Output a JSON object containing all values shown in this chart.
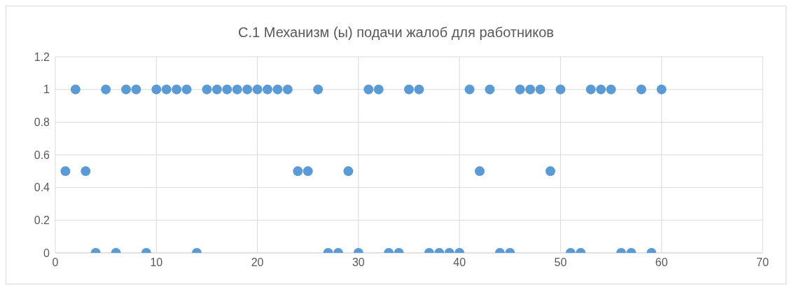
{
  "chart_data": {
    "type": "scatter",
    "title": "С.1 Механизм (ы) подачи жалоб для работников",
    "x": [
      1,
      2,
      3,
      4,
      5,
      6,
      7,
      8,
      9,
      10,
      11,
      12,
      13,
      14,
      15,
      16,
      17,
      18,
      19,
      20,
      21,
      22,
      23,
      24,
      25,
      26,
      27,
      28,
      29,
      30,
      31,
      32,
      33,
      34,
      35,
      36,
      37,
      38,
      39,
      40,
      41,
      42,
      43,
      44,
      45,
      46,
      47,
      48,
      49,
      50,
      51,
      52,
      53,
      54,
      55,
      56,
      57,
      58,
      59,
      60
    ],
    "values": [
      0.5,
      1,
      0.5,
      0,
      1,
      0,
      1,
      1,
      0,
      1,
      1,
      1,
      1,
      0,
      1,
      1,
      1,
      1,
      1,
      1,
      1,
      1,
      1,
      0.5,
      0.5,
      1,
      0,
      0,
      0.5,
      0,
      1,
      1,
      0,
      0,
      1,
      1,
      0,
      0,
      0,
      0,
      1,
      0.5,
      1,
      0,
      0,
      1,
      1,
      1,
      0.5,
      1,
      0,
      0,
      1,
      1,
      1,
      0,
      0,
      1,
      0,
      1
    ],
    "color": "#5b9bd5",
    "marker": "circle",
    "xlim": [
      0,
      70
    ],
    "xticks": [
      0,
      10,
      20,
      30,
      40,
      50,
      60,
      70
    ],
    "ylim": [
      0,
      1.2
    ],
    "yticks": [
      0,
      0.2,
      0.4,
      0.6,
      0.8,
      1,
      1.2
    ],
    "grid": true
  }
}
